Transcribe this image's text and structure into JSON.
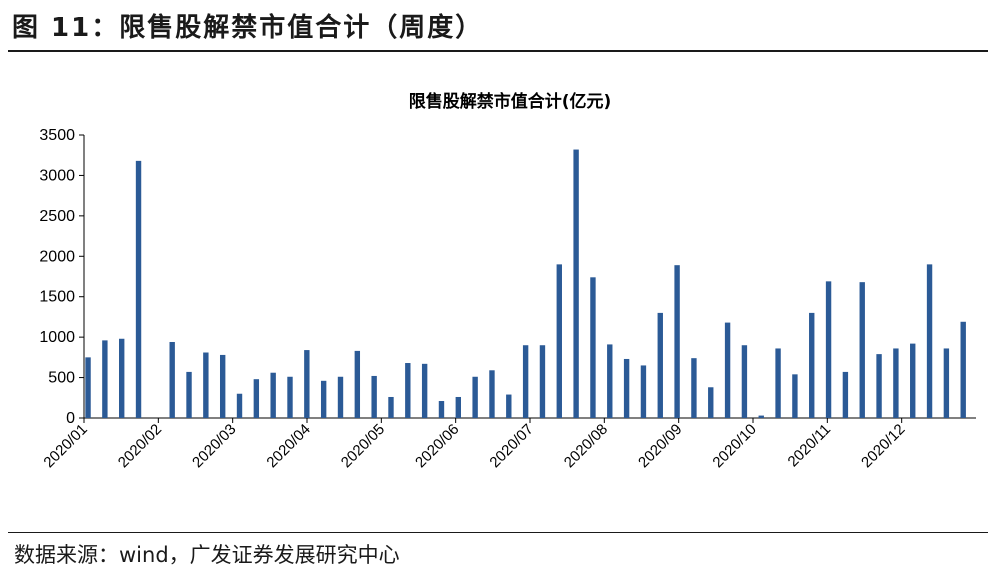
{
  "figure": {
    "title": "图 11：限售股解禁市值合计（周度）",
    "source": "数据来源：wind，广发证券发展研究中心"
  },
  "chart_data": {
    "type": "bar",
    "title": "限售股解禁市值合计(亿元)",
    "xlabel": "",
    "ylabel": "",
    "ylim": [
      0,
      3500
    ],
    "yticks": [
      0,
      500,
      1000,
      1500,
      2000,
      2500,
      3000,
      3500
    ],
    "x_tick_labels": [
      "2020/01",
      "2020/02",
      "2020/03",
      "2020/04",
      "2020/05",
      "2020/06",
      "2020/07",
      "2020/08",
      "2020/09",
      "2020/10",
      "2020/11",
      "2020/12"
    ],
    "grid": false,
    "legend": "none",
    "bar_color": "#2b5a96",
    "series": [
      {
        "values": [
          750,
          960,
          980,
          3180,
          0,
          940,
          570,
          810,
          780,
          300,
          480,
          560,
          510,
          840,
          460,
          510,
          830,
          520,
          260,
          680,
          670,
          210,
          260,
          510,
          590,
          290,
          900,
          900,
          1900,
          3320,
          1740,
          910,
          730,
          650,
          1300,
          1890,
          740,
          380,
          1180,
          900,
          30,
          860,
          540,
          1300,
          1690,
          570,
          1680,
          790,
          860,
          920,
          1900,
          860,
          1190
        ]
      }
    ]
  }
}
